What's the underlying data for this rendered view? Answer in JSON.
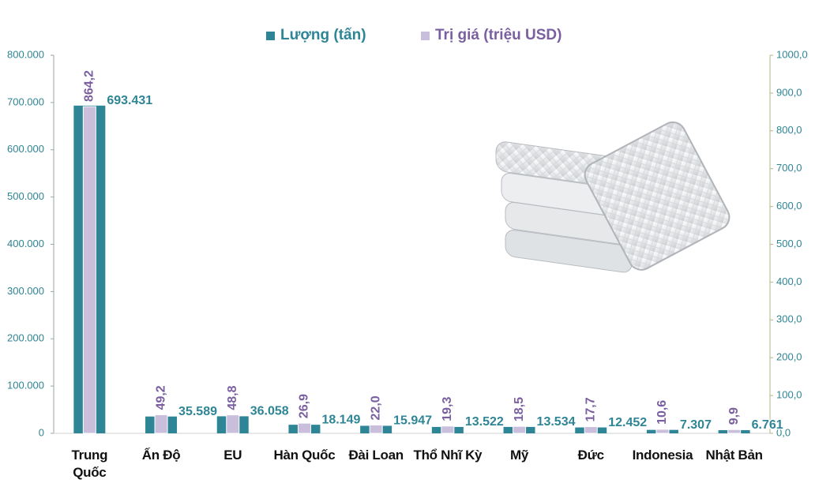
{
  "chart_data": {
    "type": "bar",
    "categories": [
      "Trung Quốc",
      "Ấn Độ",
      "EU",
      "Hàn Quốc",
      "Đài Loan",
      "Thổ Nhĩ Kỳ",
      "Mỹ",
      "Đức",
      "Indonesia",
      "Nhật Bản"
    ],
    "series": [
      {
        "name": "Lượng (tấn)",
        "color": "#2e8595",
        "values": [
          693431,
          35589,
          36058,
          18149,
          15947,
          13522,
          13534,
          12452,
          7307,
          6761
        ],
        "value_labels": [
          "693.431",
          "35.589",
          "36.058",
          "18.149",
          "15.947",
          "13.522",
          "13.534",
          "12.452",
          "7.307",
          "6.761"
        ]
      },
      {
        "name": "Trị giá (triệu USD)",
        "color": "#c9bfdc",
        "axis": "y2",
        "values": [
          864.2,
          49.2,
          48.8,
          26.9,
          22.0,
          19.3,
          18.5,
          17.7,
          10.6,
          9.9
        ],
        "value_labels": [
          "864,2",
          "49,2",
          "48,8",
          "26,9",
          "22,0",
          "19,3",
          "18,5",
          "17,7",
          "10,6",
          "9,9"
        ]
      }
    ],
    "ylim": [
      0,
      800000
    ],
    "yticks": [
      0,
      {
        "value": 100000,
        "label": "100.000"
      },
      {
        "value": 200000,
        "label": "200.000"
      },
      {
        "value": 300000,
        "label": "300.000"
      },
      {
        "value": 400000,
        "label": "400.000"
      },
      {
        "value": 500000,
        "label": "500.000"
      },
      {
        "value": 600000,
        "label": "600.000"
      },
      {
        "value": 700000,
        "label": "700.000"
      },
      {
        "value": 800000,
        "label": "800.000"
      }
    ],
    "y2lim": [
      0,
      1000
    ],
    "y2ticks": [
      {
        "value": 0,
        "label": "0,0"
      },
      {
        "value": 100,
        "label": "100,0"
      },
      {
        "value": 200,
        "label": "200,0"
      },
      {
        "value": 300,
        "label": "300,0"
      },
      {
        "value": 400,
        "label": "400,0"
      },
      {
        "value": 500,
        "label": "500,0"
      },
      {
        "value": 600,
        "label": "600,0"
      },
      {
        "value": 700,
        "label": "700,0"
      },
      {
        "value": 800,
        "label": "800,0"
      },
      {
        "value": 900,
        "label": "900,0"
      },
      {
        "value": 1000,
        "label": "1000,0"
      }
    ],
    "legend": "top"
  }
}
